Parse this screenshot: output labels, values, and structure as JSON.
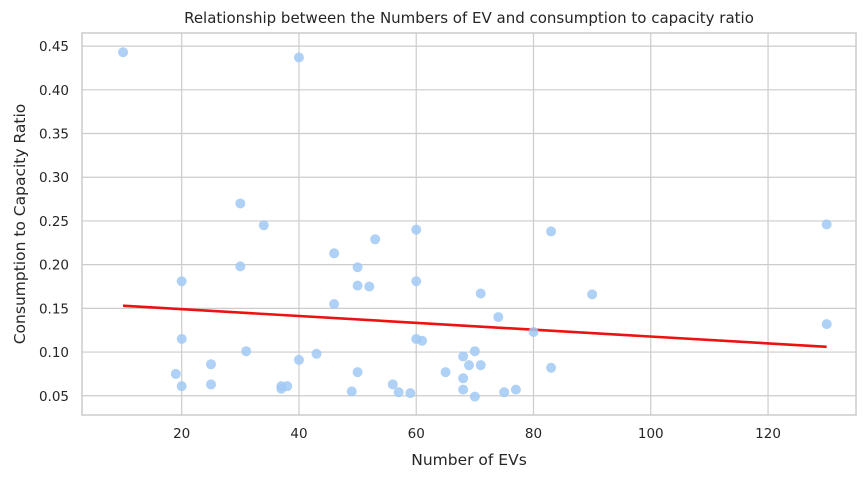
{
  "chart_data": {
    "type": "scatter",
    "title": "Relationship between the Numbers of EV and consumption to capacity ratio",
    "xlabel": "Number of EVs",
    "ylabel": "Consumption to Capacity Ratio",
    "xlim": [
      3,
      135
    ],
    "ylim": [
      0.028,
      0.465
    ],
    "xticks": [
      20,
      40,
      60,
      80,
      100,
      120
    ],
    "yticks": [
      0.05,
      0.1,
      0.15,
      0.2,
      0.25,
      0.3,
      0.35,
      0.4,
      0.45
    ],
    "xtick_labels": [
      "20",
      "40",
      "60",
      "80",
      "100",
      "120"
    ],
    "ytick_labels": [
      "0.05",
      "0.10",
      "0.15",
      "0.20",
      "0.25",
      "0.30",
      "0.35",
      "0.40",
      "0.45"
    ],
    "grid": true,
    "point_color": "#a1c9f4",
    "trend_color": "#ee1111",
    "points": [
      [
        10,
        0.443
      ],
      [
        40,
        0.437
      ],
      [
        30,
        0.27
      ],
      [
        34,
        0.245
      ],
      [
        130,
        0.246
      ],
      [
        60,
        0.24
      ],
      [
        83,
        0.238
      ],
      [
        53,
        0.229
      ],
      [
        46,
        0.213
      ],
      [
        30,
        0.198
      ],
      [
        50,
        0.197
      ],
      [
        20,
        0.181
      ],
      [
        60,
        0.181
      ],
      [
        50,
        0.176
      ],
      [
        52,
        0.175
      ],
      [
        71,
        0.167
      ],
      [
        90,
        0.166
      ],
      [
        46,
        0.155
      ],
      [
        74,
        0.14
      ],
      [
        130,
        0.132
      ],
      [
        80,
        0.123
      ],
      [
        20,
        0.115
      ],
      [
        60,
        0.115
      ],
      [
        61,
        0.113
      ],
      [
        31,
        0.101
      ],
      [
        70,
        0.101
      ],
      [
        43,
        0.098
      ],
      [
        68,
        0.095
      ],
      [
        40,
        0.091
      ],
      [
        25,
        0.086
      ],
      [
        69,
        0.085
      ],
      [
        71,
        0.085
      ],
      [
        83,
        0.082
      ],
      [
        50,
        0.077
      ],
      [
        65,
        0.077
      ],
      [
        19,
        0.075
      ],
      [
        68,
        0.07
      ],
      [
        25,
        0.063
      ],
      [
        56,
        0.063
      ],
      [
        20,
        0.061
      ],
      [
        37,
        0.061
      ],
      [
        38,
        0.061
      ],
      [
        37,
        0.058
      ],
      [
        68,
        0.057
      ],
      [
        77,
        0.057
      ],
      [
        49,
        0.055
      ],
      [
        57,
        0.054
      ],
      [
        59,
        0.053
      ],
      [
        75,
        0.054
      ],
      [
        70,
        0.049
      ]
    ],
    "trend_line": {
      "x": [
        10,
        130
      ],
      "y": [
        0.153,
        0.106
      ]
    }
  }
}
